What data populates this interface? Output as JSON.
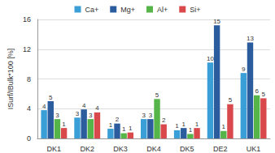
{
  "chart_data": {
    "type": "bar",
    "y_label": "ISurf/IBulk*100 [%]",
    "categories": [
      "DK1",
      "DK2",
      "DK3",
      "DK4",
      "DK5",
      "DE2",
      "UK1"
    ],
    "series": [
      {
        "name": "Ca+",
        "color": "#3a9fd6",
        "values": [
          3.8,
          2.8,
          1.3,
          2.6,
          1.1,
          10.2,
          8.8
        ],
        "value_labels": [
          "4",
          "3",
          "1",
          "3",
          "1",
          "10",
          "9"
        ]
      },
      {
        "name": "Mg+",
        "color": "#2b5c9e",
        "values": [
          5.0,
          3.9,
          2.0,
          2.6,
          1.4,
          15.2,
          12.9
        ],
        "value_labels": [
          "5",
          "4",
          "2",
          "3",
          "1",
          "15",
          "13"
        ]
      },
      {
        "name": "Al+",
        "color": "#55b548",
        "values": [
          2.6,
          2.6,
          0.7,
          5.3,
          0.6,
          1.0,
          5.8
        ],
        "value_labels": [
          "3",
          "3",
          "1",
          "5",
          "1",
          "1",
          "6"
        ]
      },
      {
        "name": "Si+",
        "color": "#d9494c",
        "values": [
          1.4,
          3.5,
          0.8,
          1.9,
          1.4,
          4.6,
          5.4
        ],
        "value_labels": [
          "1",
          "4",
          "1",
          "2",
          "1",
          "5",
          "5"
        ]
      }
    ],
    "ylim": [
      0,
      16
    ],
    "yticks": [
      0,
      4,
      8,
      12,
      16
    ],
    "grid": true,
    "legend": "top",
    "data_labels": true
  }
}
